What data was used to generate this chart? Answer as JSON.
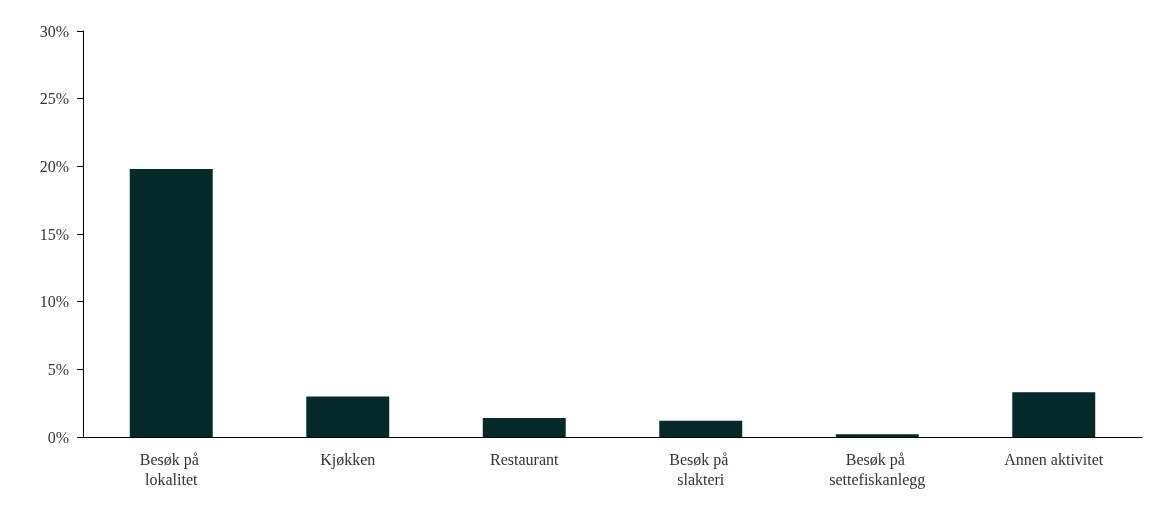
{
  "chart_data": {
    "type": "bar",
    "categories": [
      "Besøk på lokalitet",
      "Kjøkken",
      "Restaurant",
      "Besøk på slakteri",
      "Besøk på settefiskanlegg",
      "Annen aktivitet"
    ],
    "values": [
      19.8,
      3.0,
      1.4,
      1.2,
      0.2,
      3.3
    ],
    "color": "#06292a",
    "ylim": [
      0,
      30
    ],
    "yticks": [
      {
        "value": 0,
        "label": "0%"
      },
      {
        "value": 5,
        "label": "5%"
      },
      {
        "value": 10,
        "label": "10%"
      },
      {
        "value": 15,
        "label": "15%"
      },
      {
        "value": 20,
        "label": "20%"
      },
      {
        "value": 25,
        "label": "25%"
      },
      {
        "value": 30,
        "label": "30%"
      }
    ],
    "grid": false
  }
}
